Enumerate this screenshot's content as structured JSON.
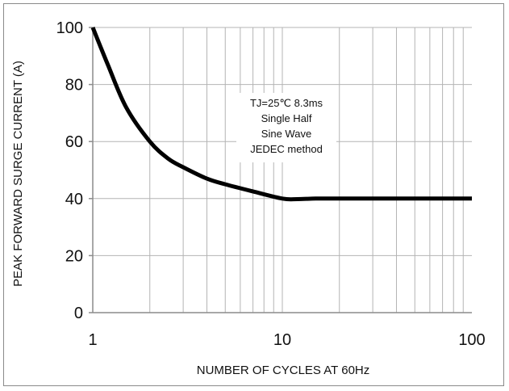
{
  "chart_data": {
    "type": "line",
    "xscale": "log",
    "xlim": [
      1,
      100
    ],
    "ylim": [
      0,
      100
    ],
    "xlabel": "NUMBER OF CYCLES AT 60Hz",
    "ylabel": "PEAK FORWARD SURGE CURRENT (A)",
    "xticks": [
      1,
      10,
      100
    ],
    "xtick_labels": [
      "1",
      "10",
      "100"
    ],
    "yticks": [
      0,
      20,
      40,
      60,
      80,
      100
    ],
    "ytick_labels": [
      "0",
      "20",
      "40",
      "60",
      "80",
      "100"
    ],
    "grid": true,
    "series": [
      {
        "color": "#000000",
        "x": [
          1,
          1.2,
          1.5,
          2,
          2.5,
          3,
          4,
          5,
          7,
          10,
          12,
          15,
          20,
          30,
          50,
          100
        ],
        "y": [
          100,
          87,
          72,
          60,
          54,
          51,
          47,
          45,
          42.5,
          40,
          39.8,
          40,
          40,
          40,
          40,
          40
        ]
      }
    ],
    "annotations": [
      "TJ=25℃ 8.3ms",
      "Single Half",
      "Sine Wave",
      "JEDEC method"
    ]
  }
}
